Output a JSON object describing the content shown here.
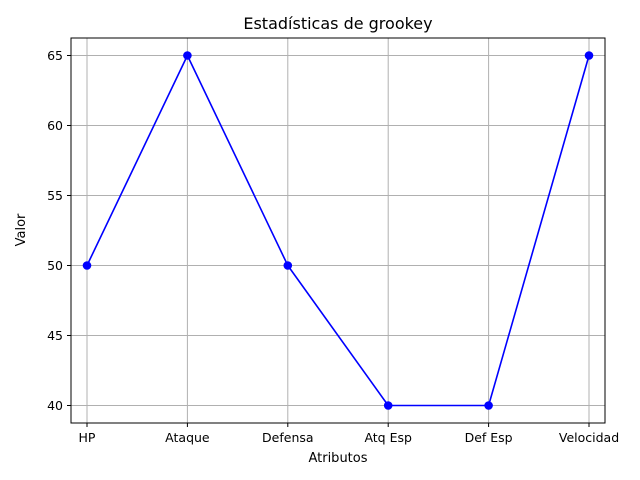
{
  "chart_data": {
    "type": "line",
    "title": "Estadísticas de grookey",
    "xlabel": "Atributos",
    "ylabel": "Valor",
    "categories": [
      "HP",
      "Ataque",
      "Defensa",
      "Atq Esp",
      "Def Esp",
      "Velocidad"
    ],
    "series": [
      {
        "values": [
          50,
          65,
          50,
          40,
          40,
          65
        ],
        "color": "#0000ff",
        "marker": "circle"
      }
    ],
    "ylim": [
      38.75,
      66.25
    ],
    "yticks": [
      40,
      45,
      50,
      55,
      60,
      65
    ],
    "grid": true
  }
}
